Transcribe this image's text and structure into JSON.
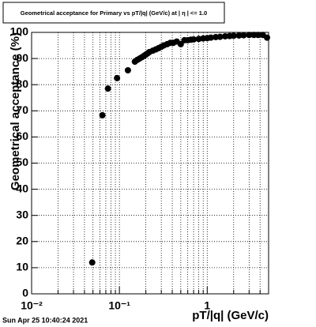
{
  "chart_data": {
    "type": "scatter",
    "title": "Geometrical acceptance for Primary vs pT/|q| (GeV/c) at | η | <= 1.0",
    "x_label": "pT/|q| (GeV/c)",
    "y_label": "Geometrical acceptance (%)",
    "timestamp": "Sun Apr 25 10:40:24 2021",
    "x_scale": "log",
    "grid": true,
    "color": "#000000",
    "xlim": [
      0.01,
      5
    ],
    "ylim": [
      0,
      100
    ],
    "xticks": [
      {
        "value": 0.01,
        "label": "10⁻²"
      },
      {
        "value": 0.1,
        "label": "10⁻¹"
      },
      1
    ],
    "xminorticks": [
      0.02,
      0.03,
      0.04,
      0.05,
      0.06,
      0.07,
      0.08,
      0.09,
      0.2,
      0.3,
      0.4,
      0.5,
      0.6,
      0.7,
      0.8,
      0.9,
      2,
      3,
      4
    ],
    "yticks": [
      0,
      10,
      20,
      30,
      40,
      50,
      60,
      70,
      80,
      90,
      100
    ],
    "x": [
      0.049,
      0.064,
      0.074,
      0.094,
      0.125,
      0.15,
      0.16,
      0.17,
      0.18,
      0.19,
      0.2,
      0.21,
      0.22,
      0.24,
      0.26,
      0.28,
      0.3,
      0.32,
      0.35,
      0.38,
      0.41,
      0.45,
      0.5,
      0.55,
      0.6,
      0.65,
      0.7,
      0.8,
      0.9,
      1.0,
      1.1,
      1.25,
      1.4,
      1.6,
      1.8,
      2.0,
      2.3,
      2.6,
      3.0,
      3.4,
      3.8,
      4.3,
      4.8
    ],
    "values": [
      12,
      68.3,
      78.5,
      82.5,
      85.5,
      88.8,
      89.5,
      90,
      90.5,
      91,
      91.5,
      92,
      92.5,
      93,
      93.5,
      94,
      94.5,
      95,
      95.5,
      96,
      96,
      96.5,
      95.5,
      97,
      97,
      97.2,
      97.3,
      97.5,
      97.7,
      97.8,
      98,
      98.2,
      98.3,
      98.5,
      98.6,
      98.7,
      98.8,
      98.9,
      99,
      99,
      99,
      99,
      98
    ]
  }
}
